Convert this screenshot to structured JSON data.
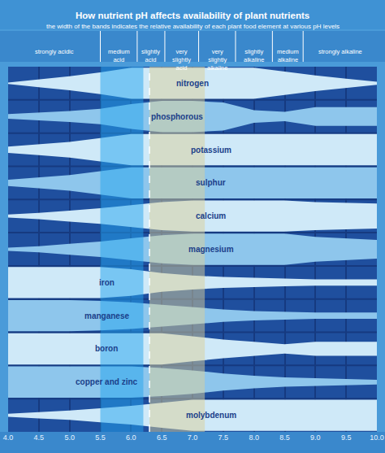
{
  "chart_data": {
    "type": "band",
    "title": "How nutrient pH affects availability of plant nutrients",
    "subtitle": "the width of the bands indicates the relative availability of each plant food element at various pH levels",
    "x": [
      4.0,
      4.5,
      5.0,
      5.5,
      6.0,
      6.5,
      7.0,
      7.5,
      8.0,
      8.5,
      9.0,
      9.5,
      10.0
    ],
    "xlim": [
      4,
      10
    ],
    "xticks": [
      {
        "value": 4,
        "label": "4.0"
      },
      4.5,
      {
        "value": 5,
        "label": "5.0"
      },
      5.5,
      {
        "value": 6,
        "label": "6.0"
      },
      6.5,
      {
        "value": 7,
        "label": "7.0"
      },
      7.5,
      {
        "value": 8,
        "label": "8.0"
      },
      8.5,
      {
        "value": 9,
        "label": "9.0"
      },
      9.5,
      {
        "value": 10,
        "label": "10.0"
      }
    ],
    "grid": true,
    "tick_labels": "x",
    "zones": [
      {
        "label": "strongly acidic",
        "from": 4.0,
        "to": 5.5
      },
      {
        "label": "medium acid",
        "from": 5.5,
        "to": 6.1
      },
      {
        "label": "slightly acid",
        "from": 6.1,
        "to": 6.55
      },
      {
        "label": "very slightly acid",
        "from": 6.55,
        "to": 7.1
      },
      {
        "label": "very slightly alkaline",
        "from": 7.1,
        "to": 7.7
      },
      {
        "label": "slightly alkaline",
        "from": 7.7,
        "to": 8.3
      },
      {
        "label": "medium alkaline",
        "from": 8.3,
        "to": 8.8
      },
      {
        "label": "strongly alkaline",
        "from": 8.8,
        "to": 10.0
      }
    ],
    "shaded_ranges": [
      {
        "from": 5.5,
        "to": 6.2,
        "color": "#22a3ee"
      },
      {
        "from": 6.3,
        "to": 7.2,
        "color": "#d9d09a"
      }
    ],
    "dashed_line": 6.3,
    "series": [
      {
        "name": "nitrogen",
        "color": "#cfe9f8",
        "values": [
          0.05,
          0.25,
          0.45,
          0.7,
          1,
          1,
          1,
          1,
          1,
          0.75,
          0.5,
          0.3,
          0.1
        ]
      },
      {
        "name": "phosphorous",
        "color": "#8ec6ec",
        "values": [
          0.15,
          0.25,
          0.35,
          0.5,
          0.8,
          1,
          1,
          0.9,
          0.4,
          0.3,
          0.6,
          0.6,
          0.6
        ]
      },
      {
        "name": "potassium",
        "color": "#cfe9f8",
        "values": [
          0.2,
          0.35,
          0.5,
          0.75,
          1,
          1,
          1,
          1,
          1,
          1,
          1,
          1,
          1
        ]
      },
      {
        "name": "sulphur",
        "color": "#8ec6ec",
        "values": [
          0.2,
          0.35,
          0.5,
          0.75,
          1,
          1,
          1,
          1,
          1,
          1,
          1,
          1,
          1
        ]
      },
      {
        "name": "calcium",
        "color": "#cfe9f8",
        "values": [
          0.1,
          0.2,
          0.35,
          0.5,
          0.7,
          0.9,
          1,
          1,
          1,
          1,
          0.9,
          0.85,
          0.8
        ]
      },
      {
        "name": "magnesium",
        "color": "#8ec6ec",
        "values": [
          0.1,
          0.2,
          0.35,
          0.5,
          0.7,
          0.9,
          1,
          1,
          1,
          1,
          0.8,
          0.7,
          0.6
        ]
      },
      {
        "name": "iron",
        "color": "#cfe9f8",
        "values": [
          1,
          1,
          1,
          1,
          0.85,
          0.6,
          0.45,
          0.35,
          0.3,
          0.25,
          0.2,
          0.2,
          0.2
        ]
      },
      {
        "name": "manganese",
        "color": "#8ec6ec",
        "values": [
          1,
          1,
          1,
          0.95,
          0.85,
          0.7,
          0.55,
          0.4,
          0.3,
          0.25,
          0.2,
          0.2,
          0.2
        ]
      },
      {
        "name": "boron",
        "color": "#cfe9f8",
        "values": [
          1,
          1,
          1,
          1,
          1,
          1,
          0.8,
          0.6,
          0.45,
          0.3,
          0.45,
          0.45,
          0.45
        ]
      },
      {
        "name": "copper and zinc",
        "color": "#8ec6ec",
        "values": [
          1,
          1,
          1,
          1,
          1,
          0.9,
          0.75,
          0.55,
          0.4,
          0.3,
          0.25,
          0.2,
          0.15
        ]
      },
      {
        "name": "molybdenum",
        "color": "#cfe9f8",
        "values": [
          0.1,
          0.2,
          0.3,
          0.45,
          0.6,
          0.8,
          1,
          1,
          1,
          1,
          1,
          1,
          1
        ]
      }
    ]
  }
}
